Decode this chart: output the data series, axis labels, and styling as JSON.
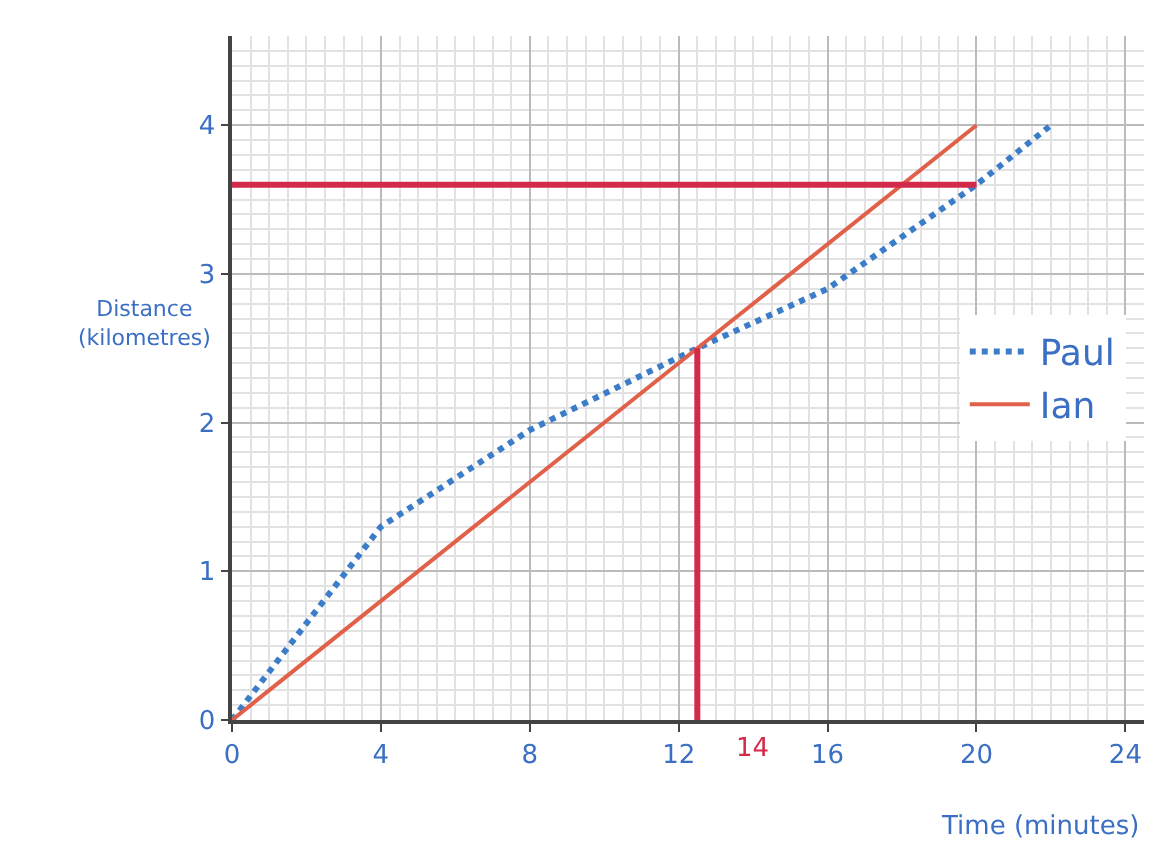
{
  "chart_data": {
    "type": "line",
    "xlabel": "Time (minutes)",
    "ylabel": "Distance\n(kilometres)",
    "xlim": [
      0,
      24.5
    ],
    "ylim": [
      0,
      4.6
    ],
    "xticks": [
      0,
      4,
      8,
      12,
      16,
      20,
      24
    ],
    "yticks": [
      0,
      1,
      2,
      3,
      4
    ],
    "grid": true,
    "legend": "right",
    "marker": "none",
    "series": [
      {
        "name": "Paul",
        "color": "#3b7dc8",
        "line_style": "dotted",
        "x": [
          0,
          4,
          8,
          12.5,
          16,
          20,
          22
        ],
        "values": [
          0,
          1.3,
          1.95,
          2.5,
          2.9,
          3.6,
          4.0
        ]
      },
      {
        "name": "Ian",
        "color": "#e0604a",
        "line_style": "solid",
        "x": [
          0,
          20
        ],
        "values": [
          0,
          4.0
        ]
      },
      {
        "color": "#d42a4a",
        "line_style": "solid",
        "x": [
          0,
          20
        ],
        "values": [
          3.6,
          3.6
        ]
      },
      {
        "color": "#d42a4a",
        "line_style": "solid",
        "x": [
          12.5,
          12.5
        ],
        "values": [
          0,
          2.5
        ]
      }
    ],
    "annotations": [
      "14"
    ]
  }
}
